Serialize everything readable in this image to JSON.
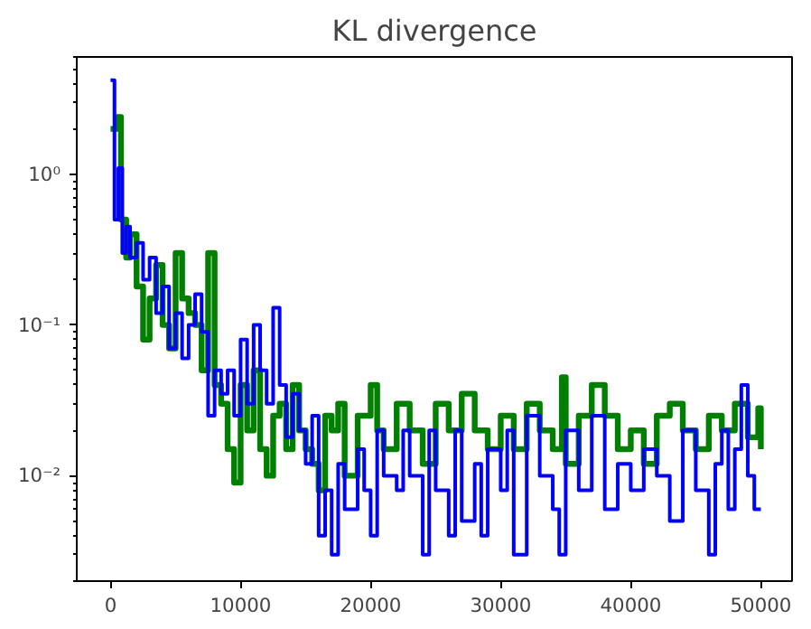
{
  "chart_data": {
    "type": "step",
    "title": "KL divergence",
    "log": "y",
    "grid": false,
    "line_style": "solid",
    "marker": "none",
    "xlim": [
      -2600,
      52400
    ],
    "xticks": [
      0,
      10000,
      20000,
      30000,
      40000,
      50000
    ],
    "ylim": [
      0.002,
      6
    ],
    "yticks": [
      {
        "value": 0.01,
        "label": "10⁻²"
      },
      {
        "value": 0.1,
        "label": "10⁻¹"
      },
      {
        "value": 1,
        "label": "10⁰"
      }
    ],
    "series": [
      {
        "color": "#008000",
        "x": [
          0,
          500,
          800,
          1200,
          1500,
          2000,
          2500,
          3000,
          3500,
          4000,
          4500,
          5000,
          5500,
          6000,
          6500,
          7000,
          7500,
          8000,
          8500,
          9000,
          9500,
          10000,
          10500,
          11000,
          11500,
          12000,
          12500,
          13000,
          13500,
          14000,
          14500,
          15000,
          15500,
          16000,
          16500,
          17000,
          17500,
          18000,
          19000,
          20000,
          20500,
          21000,
          22000,
          23000,
          24000,
          25000,
          26000,
          27000,
          28000,
          29000,
          30000,
          31000,
          32000,
          33000,
          34000,
          34700,
          35000,
          36000,
          37000,
          38000,
          39000,
          40000,
          41000,
          42000,
          43000,
          44000,
          45000,
          46000,
          47000,
          48000,
          49000,
          49800,
          50000
        ],
        "values": [
          2.0,
          2.4,
          0.5,
          0.28,
          0.4,
          0.18,
          0.08,
          0.15,
          0.25,
          0.1,
          0.07,
          0.3,
          0.15,
          0.12,
          0.1,
          0.05,
          0.3,
          0.04,
          0.03,
          0.015,
          0.009,
          0.04,
          0.02,
          0.05,
          0.015,
          0.01,
          0.025,
          0.03,
          0.015,
          0.04,
          0.02,
          0.015,
          0.012,
          0.008,
          0.025,
          0.02,
          0.03,
          0.01,
          0.025,
          0.04,
          0.02,
          0.015,
          0.03,
          0.02,
          0.012,
          0.03,
          0.02,
          0.035,
          0.02,
          0.015,
          0.025,
          0.015,
          0.03,
          0.02,
          0.015,
          0.045,
          0.012,
          0.025,
          0.04,
          0.025,
          0.015,
          0.02,
          0.012,
          0.025,
          0.03,
          0.02,
          0.015,
          0.025,
          0.02,
          0.03,
          0.018,
          0.028,
          0.015
        ]
      },
      {
        "color": "#0000ff",
        "x": [
          0,
          300,
          600,
          900,
          1200,
          1500,
          2000,
          2500,
          3000,
          3500,
          4000,
          4500,
          5000,
          5500,
          6000,
          6500,
          7000,
          7500,
          8000,
          8500,
          9000,
          9500,
          10000,
          10500,
          11000,
          11500,
          12000,
          12500,
          13000,
          13500,
          14000,
          14500,
          15000,
          15500,
          16000,
          16500,
          17000,
          17500,
          18000,
          19000,
          19500,
          20000,
          20500,
          21000,
          22000,
          22500,
          23000,
          24000,
          24500,
          25000,
          26000,
          26500,
          27000,
          28000,
          28500,
          29000,
          30000,
          30500,
          31000,
          32000,
          33000,
          34000,
          34500,
          35000,
          36000,
          37000,
          38000,
          39000,
          40000,
          41000,
          42000,
          43000,
          44000,
          45000,
          46000,
          46500,
          47000,
          47500,
          48000,
          48500,
          49000,
          49500,
          50000
        ],
        "values": [
          4.2,
          0.5,
          1.1,
          0.3,
          0.45,
          0.28,
          0.35,
          0.2,
          0.28,
          0.12,
          0.18,
          0.07,
          0.12,
          0.06,
          0.1,
          0.16,
          0.09,
          0.025,
          0.05,
          0.035,
          0.05,
          0.025,
          0.08,
          0.03,
          0.1,
          0.05,
          0.03,
          0.13,
          0.04,
          0.018,
          0.035,
          0.02,
          0.012,
          0.025,
          0.004,
          0.008,
          0.003,
          0.012,
          0.006,
          0.015,
          0.008,
          0.004,
          0.02,
          0.01,
          0.008,
          0.02,
          0.01,
          0.003,
          0.02,
          0.008,
          0.004,
          0.02,
          0.005,
          0.012,
          0.004,
          0.015,
          0.008,
          0.02,
          0.003,
          0.025,
          0.01,
          0.006,
          0.003,
          0.02,
          0.008,
          0.025,
          0.006,
          0.012,
          0.008,
          0.015,
          0.01,
          0.005,
          0.02,
          0.008,
          0.003,
          0.012,
          0.02,
          0.006,
          0.015,
          0.04,
          0.01,
          0.006,
          0.006
        ]
      }
    ]
  }
}
